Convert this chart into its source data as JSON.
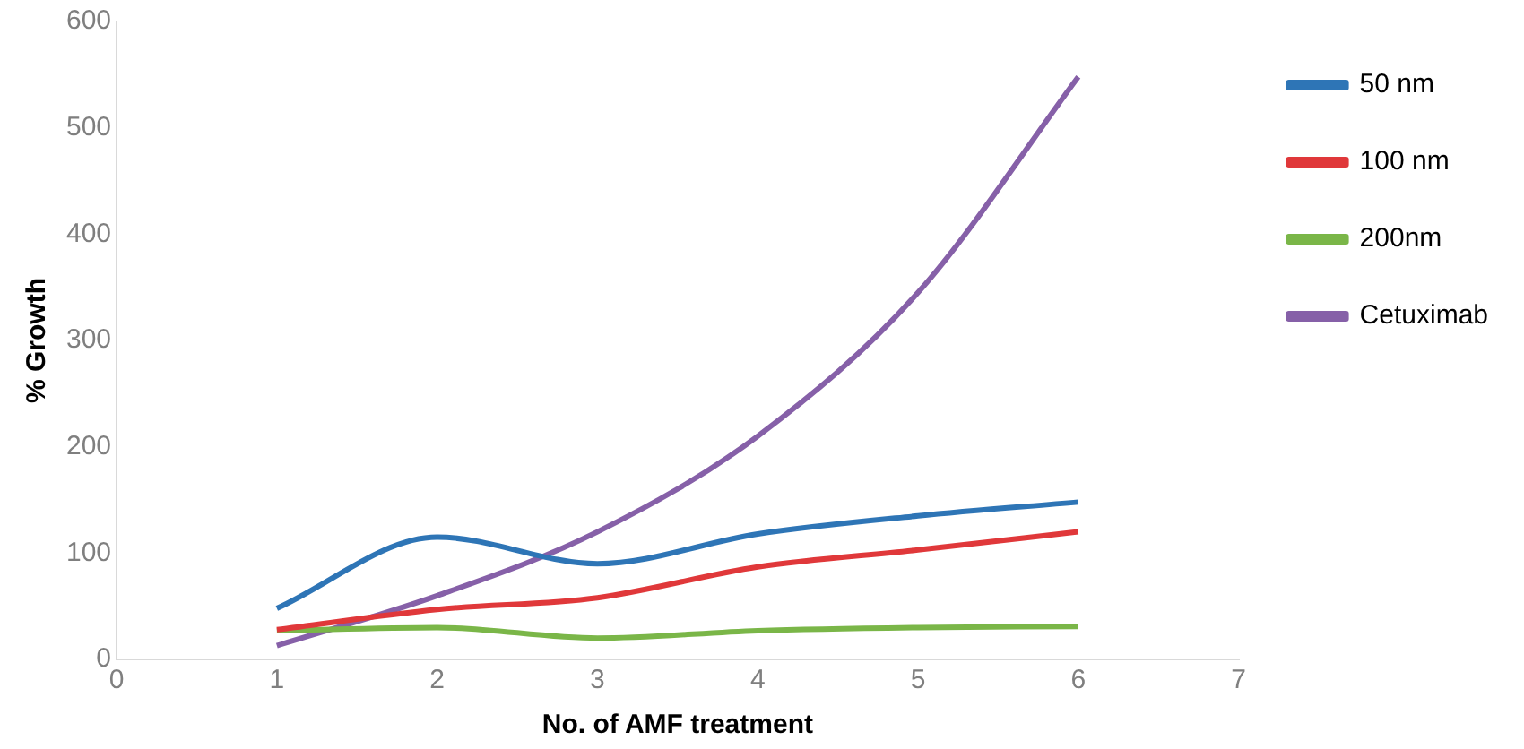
{
  "chart_data": {
    "type": "line",
    "xlabel": "No. of AMF treatment",
    "ylabel": "% Growth",
    "x": [
      1,
      2,
      3,
      4,
      5,
      6
    ],
    "series": [
      {
        "name": "50 nm",
        "color": "#2e75b6",
        "values": [
          48,
          115,
          90,
          118,
          135,
          148
        ]
      },
      {
        "name": "100 nm",
        "color": "#e0383a",
        "values": [
          28,
          47,
          58,
          87,
          103,
          120
        ]
      },
      {
        "name": "200nm",
        "color": "#7ab648",
        "values": [
          27,
          30,
          20,
          27,
          30,
          31
        ]
      },
      {
        "name": "Cetuximab",
        "color": "#8660a8",
        "values": [
          13,
          60,
          120,
          210,
          345,
          548
        ]
      }
    ],
    "xlim": [
      0,
      7
    ],
    "xticks": [
      0,
      1,
      2,
      3,
      4,
      5,
      6,
      7
    ],
    "ylim": [
      0,
      600
    ],
    "yticks": [
      0,
      100,
      200,
      300,
      400,
      500,
      600
    ],
    "grid": false,
    "legend": "right",
    "marker": "none",
    "line_style": "solid"
  }
}
